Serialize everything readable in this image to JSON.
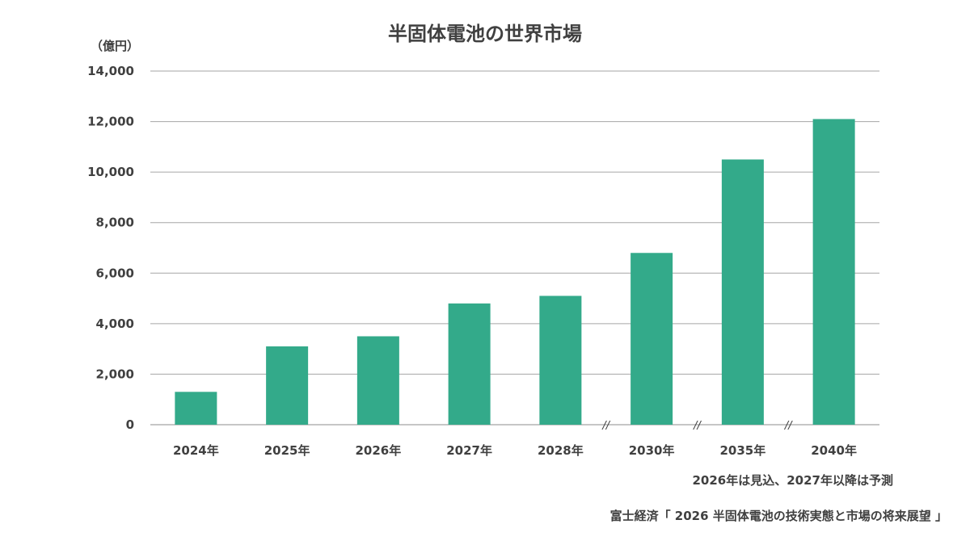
{
  "chart_data": {
    "type": "bar",
    "title": "半固体電池の世界市場",
    "ylabel": "（億円）",
    "xlabel": "",
    "categories": [
      "2024年",
      "2025年",
      "2026年",
      "2027年",
      "2028年",
      "2030年",
      "2035年",
      "2040年"
    ],
    "values": [
      1300,
      3100,
      3500,
      4800,
      5100,
      6800,
      10500,
      12100
    ],
    "ylim": [
      0,
      14000
    ],
    "yticks": [
      "0",
      "2,000",
      "4,000",
      "6,000",
      "8,000",
      "10,000",
      "12,000",
      "14,000"
    ],
    "axis_break_symbol": "//",
    "axis_breaks_before": [
      "2030年",
      "2035年",
      "2040年"
    ],
    "grid": true,
    "legend": "none",
    "bar_color": "#33aa8a"
  },
  "note": "2026年は見込、2027年以降は予測",
  "source": "富士経済「 2026 半固体電池の技術実態と市場の将来展望 」"
}
